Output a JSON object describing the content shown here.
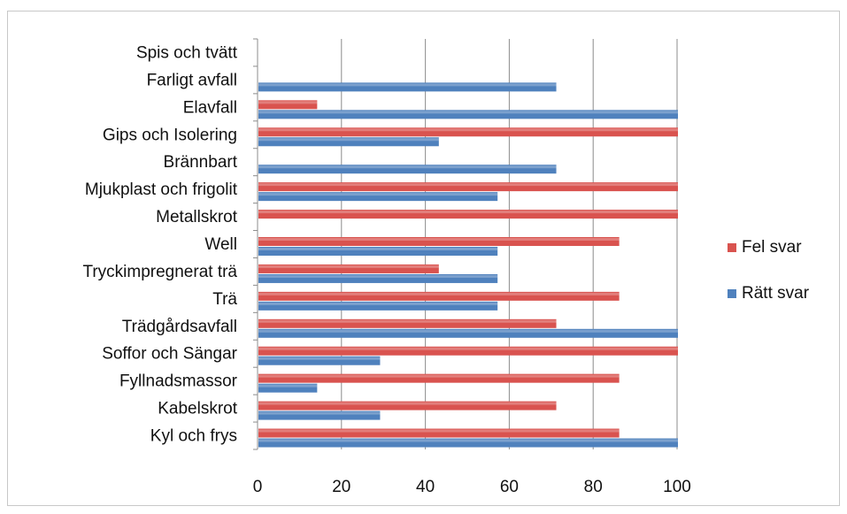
{
  "chart_data": {
    "type": "bar",
    "orientation": "horizontal",
    "categories": [
      "Spis och tvätt",
      "Farligt avfall",
      "Elavfall",
      "Gips och Isolering",
      "Brännbart",
      "Mjukplast och frigolit",
      "Metallskrot",
      "Well",
      "Tryckimpregnerat trä",
      "Trä",
      "Trädgårdsavfall",
      "Soffor och Sängar",
      "Fyllnadsmassor",
      "Kabelskrot",
      "Kyl och frys"
    ],
    "series": [
      {
        "name": "Fel svar",
        "color": "#d9534f",
        "values": [
          0,
          0,
          14,
          100,
          0,
          100,
          100,
          86,
          43,
          86,
          71,
          100,
          86,
          71,
          86
        ]
      },
      {
        "name": "Rätt svar",
        "color": "#4f81bd",
        "values": [
          0,
          71,
          100,
          43,
          71,
          57,
          0,
          57,
          57,
          57,
          100,
          29,
          14,
          29,
          100
        ]
      }
    ],
    "xlim": [
      0,
      100
    ],
    "xticks": [
      "0",
      "20",
      "40",
      "60",
      "80",
      "100"
    ],
    "grid": true,
    "legend_position": "right"
  }
}
